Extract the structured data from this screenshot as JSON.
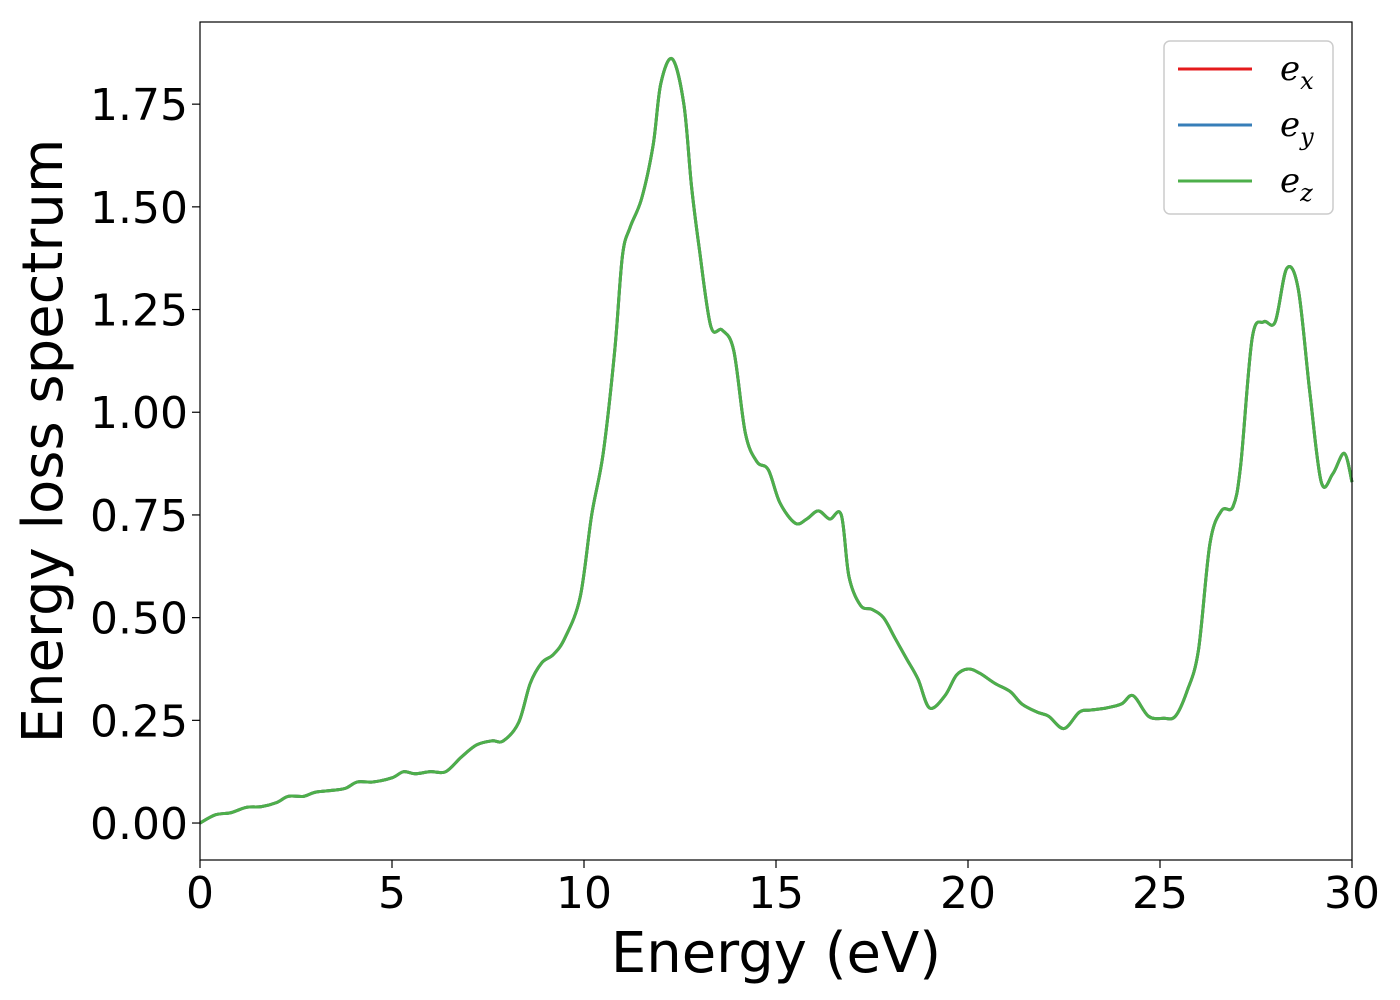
{
  "chart_data": {
    "type": "line",
    "title": "",
    "xlabel": "Energy (eV)",
    "ylabel": "Energy loss spectrum",
    "xlim": [
      0,
      30
    ],
    "ylim": [
      -0.09,
      1.95
    ],
    "xticks": [
      0,
      5,
      10,
      15,
      20,
      25,
      30
    ],
    "xtick_labels": [
      "0",
      "5",
      "10",
      "15",
      "20",
      "25",
      "30"
    ],
    "yticks": [
      0.0,
      0.25,
      0.5,
      0.75,
      1.0,
      1.25,
      1.5,
      1.75
    ],
    "ytick_labels": [
      "0.00",
      "0.25",
      "0.50",
      "0.75",
      "1.00",
      "1.25",
      "1.50",
      "1.75"
    ],
    "grid": false,
    "legend_position": "top-right",
    "series": [
      {
        "name_base": "e",
        "name_sub": "x",
        "color": "#e41a1c",
        "x": [
          0,
          0.4,
          0.8,
          1.2,
          1.6,
          2.0,
          2.3,
          2.7,
          3.0,
          3.5,
          3.8,
          4.1,
          4.5,
          5.0,
          5.3,
          5.6,
          6.0,
          6.4,
          6.8,
          7.2,
          7.6,
          7.9,
          8.3,
          8.6,
          8.9,
          9.2,
          9.5,
          9.9,
          10.2,
          10.5,
          10.8,
          11.0,
          11.2,
          11.5,
          11.8,
          12.0,
          12.3,
          12.6,
          12.8,
          13.0,
          13.3,
          13.6,
          13.9,
          14.2,
          14.5,
          14.8,
          15.1,
          15.5,
          15.8,
          16.1,
          16.4,
          16.7,
          16.9,
          17.2,
          17.5,
          17.8,
          18.1,
          18.4,
          18.7,
          19.0,
          19.4,
          19.7,
          20.0,
          20.3,
          20.7,
          21.1,
          21.4,
          21.8,
          22.1,
          22.5,
          22.9,
          23.2,
          23.6,
          24.0,
          24.3,
          24.7,
          25.1,
          25.4,
          25.7,
          26.0,
          26.3,
          26.6,
          26.9,
          27.1,
          27.4,
          27.7,
          28.0,
          28.3,
          28.6,
          28.9,
          29.2,
          29.5,
          29.8,
          30.0
        ],
        "y": [
          0.0,
          0.02,
          0.025,
          0.038,
          0.04,
          0.05,
          0.065,
          0.065,
          0.075,
          0.08,
          0.085,
          0.1,
          0.1,
          0.11,
          0.125,
          0.12,
          0.125,
          0.125,
          0.16,
          0.19,
          0.2,
          0.2,
          0.245,
          0.34,
          0.39,
          0.41,
          0.45,
          0.55,
          0.75,
          0.9,
          1.15,
          1.38,
          1.45,
          1.52,
          1.65,
          1.8,
          1.86,
          1.75,
          1.55,
          1.4,
          1.21,
          1.2,
          1.15,
          0.95,
          0.88,
          0.86,
          0.78,
          0.73,
          0.74,
          0.76,
          0.74,
          0.75,
          0.6,
          0.53,
          0.52,
          0.5,
          0.45,
          0.4,
          0.35,
          0.28,
          0.31,
          0.36,
          0.375,
          0.365,
          0.34,
          0.32,
          0.29,
          0.27,
          0.26,
          0.23,
          0.27,
          0.275,
          0.28,
          0.29,
          0.31,
          0.26,
          0.255,
          0.26,
          0.32,
          0.42,
          0.68,
          0.76,
          0.77,
          0.87,
          1.18,
          1.22,
          1.22,
          1.35,
          1.3,
          1.05,
          0.83,
          0.85,
          0.9,
          0.83
        ]
      },
      {
        "name_base": "e",
        "name_sub": "y",
        "color": "#377eb8",
        "x": [
          0,
          0.4,
          0.8,
          1.2,
          1.6,
          2.0,
          2.3,
          2.7,
          3.0,
          3.5,
          3.8,
          4.1,
          4.5,
          5.0,
          5.3,
          5.6,
          6.0,
          6.4,
          6.8,
          7.2,
          7.6,
          7.9,
          8.3,
          8.6,
          8.9,
          9.2,
          9.5,
          9.9,
          10.2,
          10.5,
          10.8,
          11.0,
          11.2,
          11.5,
          11.8,
          12.0,
          12.3,
          12.6,
          12.8,
          13.0,
          13.3,
          13.6,
          13.9,
          14.2,
          14.5,
          14.8,
          15.1,
          15.5,
          15.8,
          16.1,
          16.4,
          16.7,
          16.9,
          17.2,
          17.5,
          17.8,
          18.1,
          18.4,
          18.7,
          19.0,
          19.4,
          19.7,
          20.0,
          20.3,
          20.7,
          21.1,
          21.4,
          21.8,
          22.1,
          22.5,
          22.9,
          23.2,
          23.6,
          24.0,
          24.3,
          24.7,
          25.1,
          25.4,
          25.7,
          26.0,
          26.3,
          26.6,
          26.9,
          27.1,
          27.4,
          27.7,
          28.0,
          28.3,
          28.6,
          28.9,
          29.2,
          29.5,
          29.8,
          30.0
        ],
        "y": [
          0.0,
          0.02,
          0.025,
          0.038,
          0.04,
          0.05,
          0.065,
          0.065,
          0.075,
          0.08,
          0.085,
          0.1,
          0.1,
          0.11,
          0.125,
          0.12,
          0.125,
          0.125,
          0.16,
          0.19,
          0.2,
          0.2,
          0.245,
          0.34,
          0.39,
          0.41,
          0.45,
          0.55,
          0.75,
          0.9,
          1.15,
          1.38,
          1.45,
          1.52,
          1.65,
          1.8,
          1.86,
          1.75,
          1.55,
          1.4,
          1.21,
          1.2,
          1.15,
          0.95,
          0.88,
          0.86,
          0.78,
          0.73,
          0.74,
          0.76,
          0.74,
          0.75,
          0.6,
          0.53,
          0.52,
          0.5,
          0.45,
          0.4,
          0.35,
          0.28,
          0.31,
          0.36,
          0.375,
          0.365,
          0.34,
          0.32,
          0.29,
          0.27,
          0.26,
          0.23,
          0.27,
          0.275,
          0.28,
          0.29,
          0.31,
          0.26,
          0.255,
          0.26,
          0.32,
          0.42,
          0.68,
          0.76,
          0.77,
          0.87,
          1.18,
          1.22,
          1.22,
          1.35,
          1.3,
          1.05,
          0.83,
          0.85,
          0.9,
          0.83
        ]
      },
      {
        "name_base": "e",
        "name_sub": "z",
        "color": "#4daf4a",
        "x": [
          0,
          0.4,
          0.8,
          1.2,
          1.6,
          2.0,
          2.3,
          2.7,
          3.0,
          3.5,
          3.8,
          4.1,
          4.5,
          5.0,
          5.3,
          5.6,
          6.0,
          6.4,
          6.8,
          7.2,
          7.6,
          7.9,
          8.3,
          8.6,
          8.9,
          9.2,
          9.5,
          9.9,
          10.2,
          10.5,
          10.8,
          11.0,
          11.2,
          11.5,
          11.8,
          12.0,
          12.3,
          12.6,
          12.8,
          13.0,
          13.3,
          13.6,
          13.9,
          14.2,
          14.5,
          14.8,
          15.1,
          15.5,
          15.8,
          16.1,
          16.4,
          16.7,
          16.9,
          17.2,
          17.5,
          17.8,
          18.1,
          18.4,
          18.7,
          19.0,
          19.4,
          19.7,
          20.0,
          20.3,
          20.7,
          21.1,
          21.4,
          21.8,
          22.1,
          22.5,
          22.9,
          23.2,
          23.6,
          24.0,
          24.3,
          24.7,
          25.1,
          25.4,
          25.7,
          26.0,
          26.3,
          26.6,
          26.9,
          27.1,
          27.4,
          27.7,
          28.0,
          28.3,
          28.6,
          28.9,
          29.2,
          29.5,
          29.8,
          30.0
        ],
        "y": [
          0.0,
          0.02,
          0.025,
          0.038,
          0.04,
          0.05,
          0.065,
          0.065,
          0.075,
          0.08,
          0.085,
          0.1,
          0.1,
          0.11,
          0.125,
          0.12,
          0.125,
          0.125,
          0.16,
          0.19,
          0.2,
          0.2,
          0.245,
          0.34,
          0.39,
          0.41,
          0.45,
          0.55,
          0.75,
          0.9,
          1.15,
          1.38,
          1.45,
          1.52,
          1.65,
          1.8,
          1.86,
          1.75,
          1.55,
          1.4,
          1.21,
          1.2,
          1.15,
          0.95,
          0.88,
          0.86,
          0.78,
          0.73,
          0.74,
          0.76,
          0.74,
          0.75,
          0.6,
          0.53,
          0.52,
          0.5,
          0.45,
          0.4,
          0.35,
          0.28,
          0.31,
          0.36,
          0.375,
          0.365,
          0.34,
          0.32,
          0.29,
          0.27,
          0.26,
          0.23,
          0.27,
          0.275,
          0.28,
          0.29,
          0.31,
          0.26,
          0.255,
          0.26,
          0.32,
          0.42,
          0.68,
          0.76,
          0.77,
          0.87,
          1.18,
          1.22,
          1.22,
          1.35,
          1.3,
          1.05,
          0.83,
          0.85,
          0.9,
          0.83
        ]
      }
    ]
  }
}
